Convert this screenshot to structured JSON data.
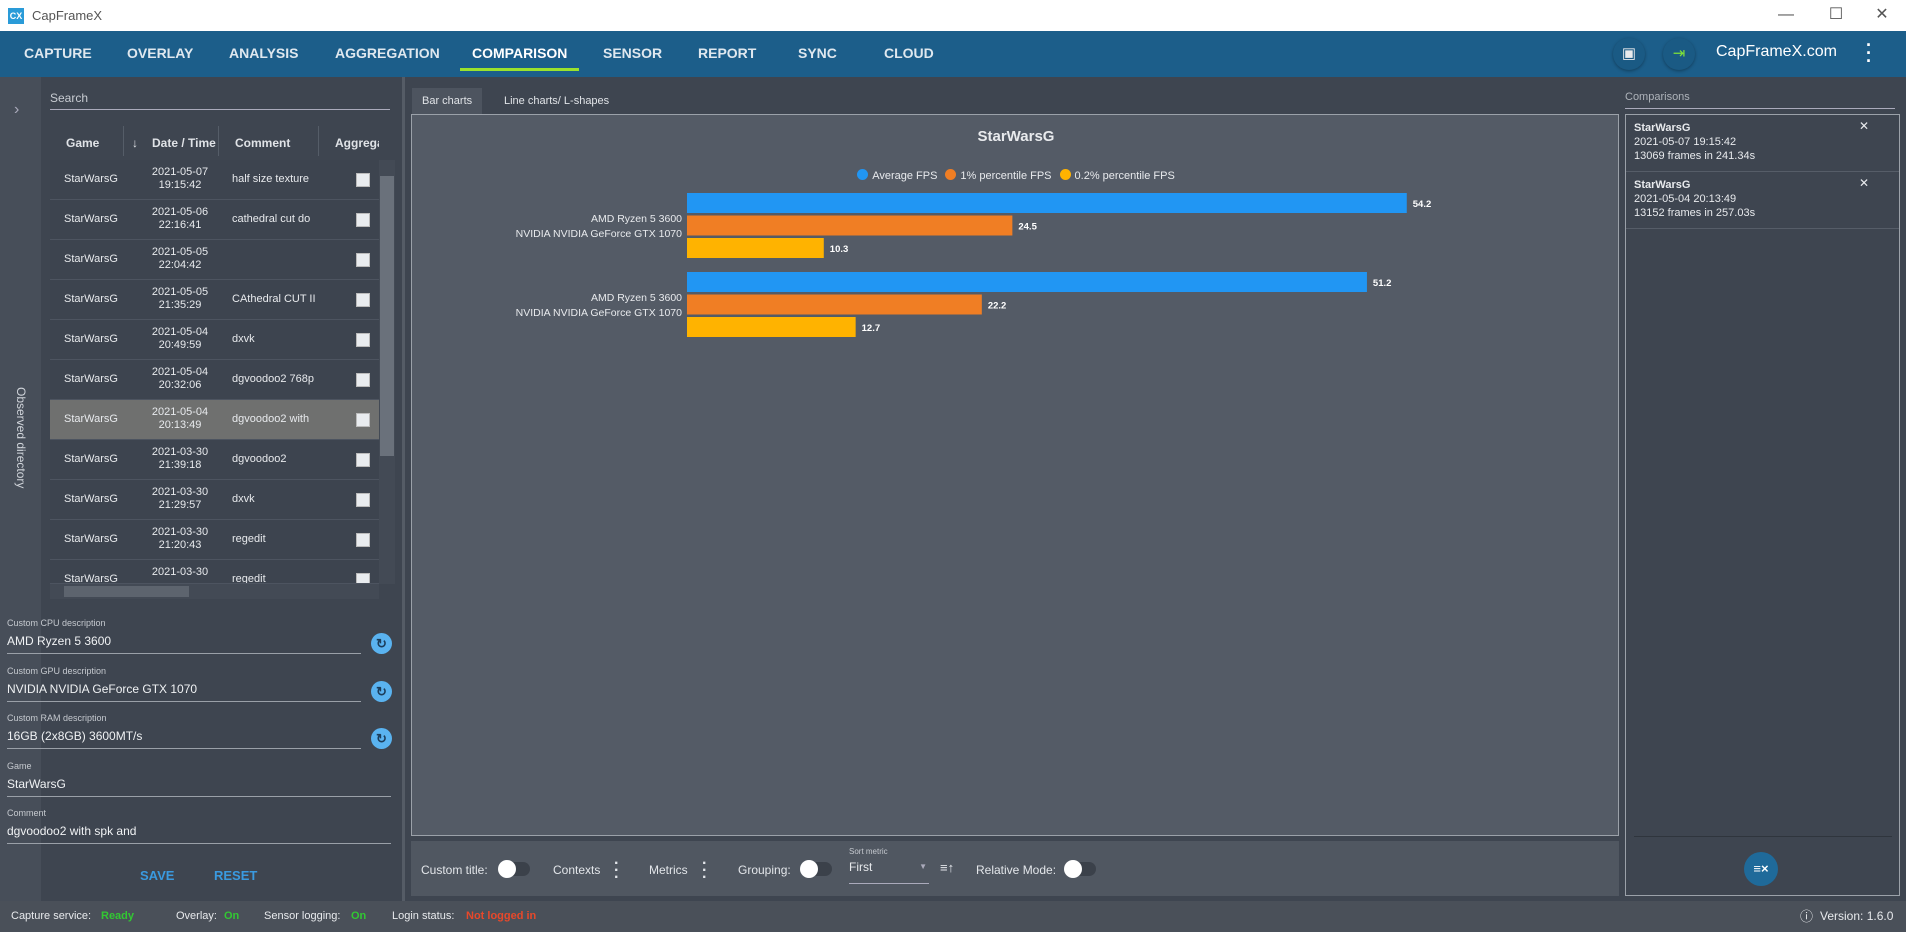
{
  "window": {
    "title": "CapFrameX",
    "logo": "CX"
  },
  "nav": {
    "items": [
      "CAPTURE",
      "OVERLAY",
      "ANALYSIS",
      "AGGREGATION",
      "COMPARISON",
      "SENSOR",
      "REPORT",
      "SYNC",
      "CLOUD"
    ],
    "active": "COMPARISON",
    "site": "CapFrameX.com"
  },
  "left": {
    "sidebar_label": "Observed directory",
    "search_placeholder": "Search",
    "columns": [
      "Game",
      "Date / Time",
      "Comment",
      "Aggrega"
    ],
    "rows": [
      {
        "game": "StarWarsG",
        "date": "2021-05-07",
        "time": "19:15:42",
        "comment": "half size texture"
      },
      {
        "game": "StarWarsG",
        "date": "2021-05-06",
        "time": "22:16:41",
        "comment": "cathedral cut do"
      },
      {
        "game": "StarWarsG",
        "date": "2021-05-05",
        "time": "22:04:42",
        "comment": ""
      },
      {
        "game": "StarWarsG",
        "date": "2021-05-05",
        "time": "21:35:29",
        "comment": "CAthedral CUT II"
      },
      {
        "game": "StarWarsG",
        "date": "2021-05-04",
        "time": "20:49:59",
        "comment": "dxvk"
      },
      {
        "game": "StarWarsG",
        "date": "2021-05-04",
        "time": "20:32:06",
        "comment": "dgvoodoo2 768p"
      },
      {
        "game": "StarWarsG",
        "date": "2021-05-04",
        "time": "20:13:49",
        "comment": "dgvoodoo2 with",
        "selected": true
      },
      {
        "game": "StarWarsG",
        "date": "2021-03-30",
        "time": "21:39:18",
        "comment": "dgvoodoo2"
      },
      {
        "game": "StarWarsG",
        "date": "2021-03-30",
        "time": "21:29:57",
        "comment": "dxvk"
      },
      {
        "game": "StarWarsG",
        "date": "2021-03-30",
        "time": "21:20:43",
        "comment": "regedit"
      },
      {
        "game": "StarWarsG",
        "date": "2021-03-30",
        "time": "",
        "comment": "regedit"
      }
    ],
    "form": {
      "cpu_label": "Custom CPU description",
      "cpu": "AMD Ryzen 5 3600",
      "gpu_label": "Custom GPU description",
      "gpu": "NVIDIA NVIDIA GeForce GTX 1070",
      "ram_label": "Custom RAM description",
      "ram": "16GB (2x8GB) 3600MT/s",
      "game_label": "Game",
      "game": "StarWarsG",
      "comment_label": "Comment",
      "comment": "dgvoodoo2 with spk and",
      "save": "SAVE",
      "reset": "RESET"
    }
  },
  "tabs": [
    "Bar charts",
    "Line charts/ L-shapes"
  ],
  "chart_data": {
    "type": "bar",
    "orientation": "horizontal",
    "title": "StarWarsG",
    "categories": [
      "AMD Ryzen 5 3600\nNVIDIA NVIDIA GeForce GTX 1070",
      "AMD Ryzen 5 3600\nNVIDIA NVIDIA GeForce GTX 1070"
    ],
    "series": [
      {
        "name": "Average FPS",
        "color": "#2196f3",
        "values": [
          54.2,
          51.2
        ]
      },
      {
        "name": "1% percentile FPS",
        "color": "#f07e24",
        "values": [
          24.5,
          22.2
        ]
      },
      {
        "name": "0.2% percentile FPS",
        "color": "#ffb300",
        "values": [
          10.3,
          12.7
        ]
      }
    ],
    "legend": "top-center",
    "grid": false
  },
  "toolbar": {
    "custom_title": "Custom title:",
    "contexts": "Contexts",
    "metrics": "Metrics",
    "grouping": "Grouping:",
    "sort_label": "Sort metric",
    "sort_value": "First",
    "relative": "Relative Mode:"
  },
  "comparisons": {
    "label": "Comparisons",
    "items": [
      {
        "game": "StarWarsG",
        "datetime": "2021-05-07 19:15:42",
        "frames": "13069 frames in 241.34s"
      },
      {
        "game": "StarWarsG",
        "datetime": "2021-05-04 20:13:49",
        "frames": "13152 frames in 257.03s"
      }
    ]
  },
  "status": {
    "capture_label": "Capture service:",
    "capture": "Ready",
    "overlay_label": "Overlay:",
    "overlay": "On",
    "sensor_label": "Sensor logging:",
    "sensor": "On",
    "login_label": "Login status:",
    "login": "Not logged in",
    "version": "Version: 1.6.0"
  }
}
